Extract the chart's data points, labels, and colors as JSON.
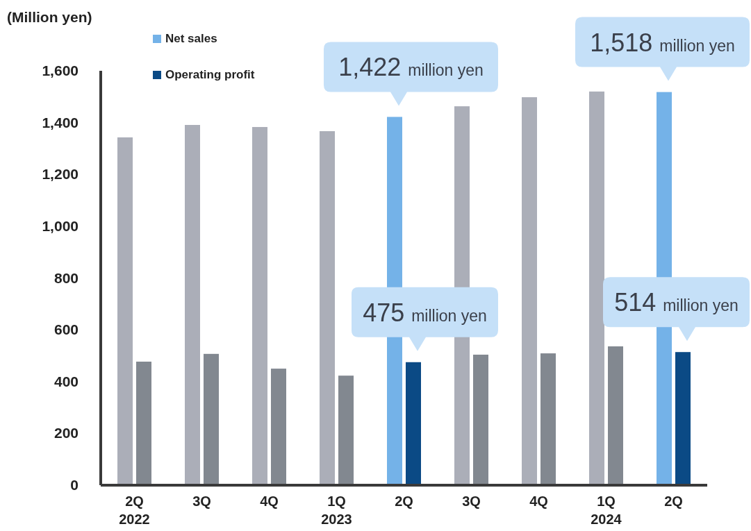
{
  "chart_data": {
    "type": "bar",
    "ylabel": "(Million yen)",
    "categories": [
      "2Q\n2022",
      "3Q",
      "4Q",
      "1Q\n2023",
      "2Q",
      "3Q",
      "4Q",
      "1Q\n2024",
      "2Q"
    ],
    "series": [
      {
        "name": "Net sales",
        "color": "#74b2e8",
        "values": [
          1343,
          1391,
          1383,
          1367,
          1422,
          1463,
          1498,
          1520,
          1518
        ],
        "colors": [
          "#abaeb8",
          "#abaeb8",
          "#abaeb8",
          "#abaeb8",
          "#74b2e8",
          "#abaeb8",
          "#abaeb8",
          "#abaeb8",
          "#74b2e8"
        ]
      },
      {
        "name": "Operating profit",
        "color": "#0b4a85",
        "values": [
          477,
          507,
          450,
          423,
          475,
          504,
          509,
          536,
          514
        ],
        "colors": [
          "#828890",
          "#828890",
          "#828890",
          "#828890",
          "#0b4a85",
          "#828890",
          "#828890",
          "#828890",
          "#0b4a85"
        ]
      }
    ],
    "ylim": [
      0,
      1600
    ],
    "yticks": [
      0,
      200,
      400,
      600,
      800,
      {
        "value": 1000,
        "label": "1,000"
      },
      {
        "value": 1200,
        "label": "1,200"
      },
      {
        "value": 1400,
        "label": "1,400"
      },
      {
        "value": 1600,
        "label": "1,600"
      }
    ],
    "grid": false,
    "legend": "top left",
    "annotations": [
      {
        "text": "1,422 million yen",
        "x": "2Q",
        "y": 1422
      },
      {
        "text": "475 million yen",
        "x": "2Q",
        "y": 475
      },
      "1,518 million yen",
      "514 million yen"
    ]
  }
}
